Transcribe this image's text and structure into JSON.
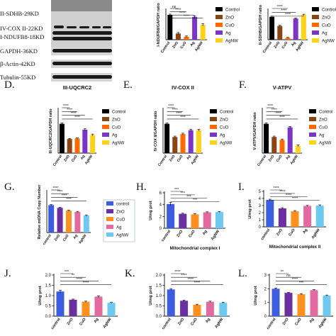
{
  "figure": {
    "panel_letters": [
      "D.",
      "E.",
      "F.",
      "G.",
      "H.",
      "I.",
      "J.",
      "K.",
      "L."
    ],
    "blot_labels": [
      "II-SDHB-29KD",
      "IV-COX II-22KD",
      "I-NDUFB8-18KD",
      "GAPDH-36KD",
      "β-Actin-42KD",
      "Tubulin-55KD"
    ]
  },
  "colors": {
    "control": "#000000",
    "ZnO": "#8b4513",
    "CuO": "#ff6a00",
    "Ag": "#7a35c8",
    "AgNW": "#ffd21a",
    "control_g": "#3d5de0",
    "ZnO_g": "#6a2fa0",
    "CuO_g": "#ff8f1f",
    "Ag_g": "#e26aa0",
    "AgNW_g": "#6fc8ef"
  },
  "chart_data": [
    {
      "id": "B",
      "type": "bar",
      "categories": [
        "Control",
        "ZnO",
        "CuO",
        "Ag",
        "AgNW"
      ],
      "values": [
        1.0,
        0.25,
        0.12,
        0.92,
        0.6
      ],
      "errors": [
        0.03,
        0.04,
        0.03,
        0.04,
        0.05
      ],
      "ylabel": "I-NDUFB8/GAPDH ratio",
      "ylim": [
        0,
        1.2
      ],
      "sig": [
        "ns",
        "****",
        "****",
        "****"
      ],
      "legend": [
        "Control",
        "ZnO",
        "CuO",
        "Ag",
        "AgNW"
      ]
    },
    {
      "id": "C",
      "type": "bar",
      "categories": [
        "Control",
        "ZnO",
        "CuO",
        "Ag",
        "AgNW"
      ],
      "values": [
        1.0,
        0.6,
        0.08,
        0.92,
        1.08
      ],
      "errors": [
        0.03,
        0.03,
        0.02,
        0.03,
        0.03
      ],
      "ylabel": "II-SDHB/GAPDH ratio",
      "ylim": [
        0,
        1.3
      ],
      "sig": [
        "****",
        "****",
        "****"
      ],
      "legend": [
        "Control",
        "ZnO",
        "CuO",
        "Ag",
        "AgNW"
      ]
    },
    {
      "id": "D",
      "type": "bar",
      "title": "III-UQCRC2",
      "categories": [
        "Control",
        "ZnO",
        "CuO",
        "Ag",
        "AgNW"
      ],
      "values": [
        1.0,
        0.48,
        0.5,
        0.8,
        0.62
      ],
      "errors": [
        0.03,
        0.02,
        0.02,
        0.03,
        0.03
      ],
      "ylabel": "III-UQCRC2/GAPDH ratio",
      "ylim": [
        0,
        1.5
      ],
      "sig": [
        "****",
        "****",
        "****",
        "****"
      ],
      "legend": [
        "Control",
        "ZnO",
        "CuO",
        "Ag",
        "AgNW"
      ]
    },
    {
      "id": "E",
      "type": "bar",
      "title": "IV-COX II",
      "categories": [
        "Control",
        "ZnO",
        "CuO",
        "Ag",
        "AgNW"
      ],
      "values": [
        1.0,
        0.55,
        0.65,
        0.78,
        0.78
      ],
      "errors": [
        0.03,
        0.03,
        0.03,
        0.03,
        0.03
      ],
      "ylabel": "IV-COX II/GAPDH ratio",
      "ylim": [
        0,
        1.5
      ],
      "sig": [
        "****",
        "****",
        "****",
        "****"
      ],
      "legend": [
        "Control",
        "ZnO",
        "CuO",
        "Ag",
        "AgNW"
      ]
    },
    {
      "id": "F",
      "type": "bar",
      "title": "V-ATPV",
      "categories": [
        "Control",
        "ZnO",
        "CuO",
        "Ag",
        "AgNW"
      ],
      "values": [
        1.0,
        0.55,
        0.45,
        0.88,
        0.25
      ],
      "errors": [
        0.03,
        0.03,
        0.03,
        0.03,
        0.03
      ],
      "ylabel": "V-ATPV/GAPDH ratio",
      "ylim": [
        0,
        1.5
      ],
      "sig": [
        "****",
        "****",
        "****",
        "****"
      ],
      "legend": [
        "Control",
        "ZnO",
        "CuO",
        "Ag",
        "AgNW"
      ]
    },
    {
      "id": "G",
      "type": "bar",
      "categories": [
        "control",
        "ZnO",
        "CuO",
        "Ag",
        "AgNW"
      ],
      "values": [
        1.0,
        0.9,
        0.8,
        0.75,
        0.62
      ],
      "errors": [
        0.02,
        0.02,
        0.02,
        0.02,
        0.02
      ],
      "ylabel": "Relative mtDNA Copy Number",
      "ylim": [
        0,
        1.5
      ],
      "sig": [
        "****",
        "****",
        "****",
        "****"
      ],
      "legend": [
        "control",
        "ZnO",
        "CuO",
        "Ag",
        "AgNW"
      ]
    },
    {
      "id": "H",
      "type": "bar",
      "categories": [
        "control",
        "ZnO",
        "CuO",
        "Ag",
        "AgNW"
      ],
      "values": [
        4.1,
        2.45,
        2.35,
        2.7,
        2.75
      ],
      "errors": [
        0.3,
        0.1,
        0.1,
        0.08,
        0.08
      ],
      "ylabel": "U/mg prot",
      "xlabel": "Mitochondrial complex I",
      "ylim": [
        0,
        6
      ],
      "yticks": [
        0,
        2,
        4,
        6
      ],
      "sig": [
        "***",
        "***",
        "***",
        "***"
      ]
    },
    {
      "id": "I",
      "type": "bar",
      "categories": [
        "control",
        "ZnO",
        "CuO",
        "Ag",
        "AgNW"
      ],
      "values": [
        3.8,
        2.6,
        2.2,
        2.95,
        3.0
      ],
      "errors": [
        0.1,
        0.1,
        0.1,
        0.08,
        0.1
      ],
      "ylabel": "U/mg prot",
      "xlabel": "Mitochondrial complex II",
      "ylim": [
        0,
        5
      ],
      "yticks": [
        0,
        1,
        2,
        3,
        4,
        5
      ],
      "sig": [
        "****",
        "****",
        "****",
        "****"
      ]
    },
    {
      "id": "J",
      "type": "bar",
      "categories": [
        "control",
        "ZnO",
        "CuO",
        "Ag",
        "AgNW"
      ],
      "values": [
        1.2,
        0.8,
        0.7,
        0.95,
        0.65
      ],
      "errors": [
        0.06,
        0.03,
        0.03,
        0.04,
        0.02
      ],
      "ylabel": "U/mg prot",
      "ylim": [
        0,
        2
      ],
      "yticks": [
        0.0,
        0.5,
        1.0,
        1.5,
        2.0
      ],
      "sig": [
        "***",
        "**",
        "****",
        "****"
      ]
    },
    {
      "id": "K",
      "type": "bar",
      "categories": [
        "control",
        "ZnO",
        "CuO",
        "Ag",
        "AgNW"
      ],
      "values": [
        1.3,
        0.75,
        0.55,
        0.7,
        0.65
      ],
      "errors": [
        0.04,
        0.03,
        0.03,
        0.03,
        0.03
      ],
      "ylabel": "U/mg prot",
      "ylim": [
        0,
        2
      ],
      "yticks": [
        0.0,
        0.5,
        1.0,
        1.5,
        2.0
      ],
      "sig": [
        "****",
        "****",
        "****",
        "****"
      ]
    },
    {
      "id": "L",
      "type": "bar",
      "categories": [
        "control",
        "ZnO",
        "CuO",
        "Ag",
        "AgNW"
      ],
      "values": [
        2.0,
        1.7,
        1.6,
        1.9,
        1.5
      ],
      "errors": [
        0.05,
        0.04,
        0.04,
        0.04,
        0.04
      ],
      "ylabel": "U/mg prot",
      "ylim": [
        0,
        3
      ],
      "yticks": [
        0,
        1,
        2,
        3
      ],
      "sig": [
        "**",
        "ns",
        "****",
        "***"
      ]
    }
  ]
}
